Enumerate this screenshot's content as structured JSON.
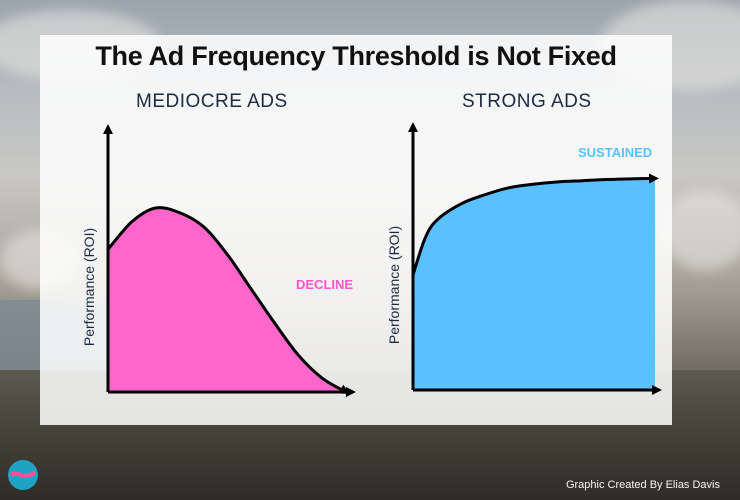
{
  "title": "The Ad Frequency Threshold is Not Fixed",
  "credit": "Graphic Created By Elias Davis",
  "colors": {
    "mediocre_fill": "#ff66cc",
    "strong_fill": "#5bc0ff",
    "decline_label": "#ff55cc",
    "sustained_label": "#5bc0ff"
  },
  "chart_data": [
    {
      "type": "area",
      "title": "MEDIOCRE ADS",
      "ylabel": "Performance (ROI)",
      "xlabel": "",
      "annotation": "DECLINE",
      "x": [
        0,
        0.1,
        0.2,
        0.3,
        0.4,
        0.5,
        0.6,
        0.7,
        0.8,
        0.9,
        1.0
      ],
      "values": [
        0.62,
        0.74,
        0.8,
        0.78,
        0.72,
        0.6,
        0.45,
        0.3,
        0.16,
        0.06,
        0.0
      ],
      "ylim": [
        0,
        1
      ],
      "xlim": [
        0,
        1
      ]
    },
    {
      "type": "area",
      "title": "STRONG ADS",
      "ylabel": "Performance (ROI)",
      "xlabel": "",
      "annotation": "SUSTAINED",
      "x": [
        0,
        0.05,
        0.1,
        0.2,
        0.3,
        0.4,
        0.5,
        0.6,
        0.7,
        0.8,
        0.9,
        1.0
      ],
      "values": [
        0.5,
        0.66,
        0.74,
        0.81,
        0.85,
        0.88,
        0.895,
        0.905,
        0.91,
        0.915,
        0.918,
        0.92
      ],
      "ylim": [
        0,
        1
      ],
      "xlim": [
        0,
        1
      ]
    }
  ]
}
